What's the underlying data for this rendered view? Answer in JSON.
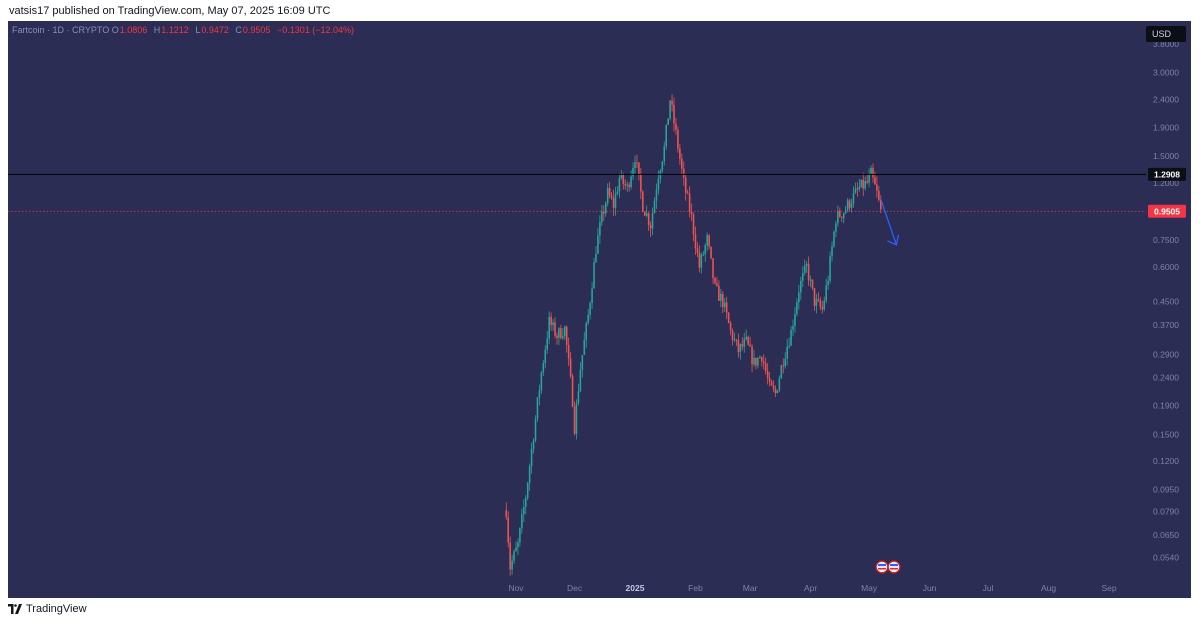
{
  "header": {
    "caption": "vatsis17 published on TradingView.com, May 07, 2025 16:09 UTC"
  },
  "legend": {
    "symbol": "Fartcoin · 1D · CRYPTO",
    "open_key": "O",
    "open": "1.0806",
    "high_key": "H",
    "high": "1.1212",
    "low_key": "L",
    "low": "0.9472",
    "close_key": "C",
    "close": "0.9505",
    "change": "−0.1301 (−12.04%)"
  },
  "currency": "USD",
  "footer": {
    "brand": "TradingView"
  },
  "colors": {
    "background": "#2b2d55",
    "up": "#26a69a",
    "down": "#ef5350",
    "resistance_line": "#000000",
    "price_line": "#f23645",
    "arrow": "#2962ff"
  },
  "chart_data": {
    "type": "candlestick",
    "scale": "log",
    "ylim": [
      0.046,
      4.3
    ],
    "y_ticks": [
      "3.8000",
      "3.0000",
      "2.4000",
      "1.9000",
      "1.5000",
      "1.2000",
      "0.9500",
      "0.7500",
      "0.6000",
      "0.4500",
      "0.3700",
      "0.2900",
      "0.2400",
      "0.1900",
      "0.1500",
      "0.1200",
      "0.0950",
      "0.0790",
      "0.0650",
      "0.0540"
    ],
    "x_ticks": [
      "Nov",
      "Dec",
      "2025",
      "Feb",
      "Mar",
      "Apr",
      "May",
      "Jun",
      "Jul",
      "Aug",
      "Sep"
    ],
    "key_levels": [
      {
        "value": 1.2908,
        "label": "1.2908",
        "style": "solid-black"
      },
      {
        "value": 0.9505,
        "label": "0.9505",
        "style": "dotted-red"
      }
    ],
    "series_path": [
      [
        "2024-10-27",
        0.08
      ],
      [
        "2024-10-29",
        0.05
      ],
      [
        "2024-11-02",
        0.06
      ],
      [
        "2024-11-06",
        0.09
      ],
      [
        "2024-11-10",
        0.15
      ],
      [
        "2024-11-14",
        0.25
      ],
      [
        "2024-11-18",
        0.38
      ],
      [
        "2024-11-22",
        0.34
      ],
      [
        "2024-11-26",
        0.36
      ],
      [
        "2024-11-30",
        0.2
      ],
      [
        "2024-12-01",
        0.16
      ],
      [
        "2024-12-04",
        0.26
      ],
      [
        "2024-12-08",
        0.4
      ],
      [
        "2024-12-12",
        0.7
      ],
      [
        "2024-12-15",
        0.9
      ],
      [
        "2024-12-18",
        1.1
      ],
      [
        "2024-12-21",
        1.0
      ],
      [
        "2024-12-24",
        1.25
      ],
      [
        "2024-12-28",
        1.15
      ],
      [
        "2025-01-01",
        1.5
      ],
      [
        "2025-01-05",
        1.0
      ],
      [
        "2025-01-09",
        0.85
      ],
      [
        "2025-01-13",
        1.3
      ],
      [
        "2025-01-16",
        1.6
      ],
      [
        "2025-01-19",
        2.4
      ],
      [
        "2025-01-22",
        1.8
      ],
      [
        "2025-01-26",
        1.2
      ],
      [
        "2025-01-30",
        0.9
      ],
      [
        "2025-02-03",
        0.6
      ],
      [
        "2025-02-07",
        0.75
      ],
      [
        "2025-02-11",
        0.5
      ],
      [
        "2025-02-15",
        0.45
      ],
      [
        "2025-02-19",
        0.35
      ],
      [
        "2025-02-23",
        0.3
      ],
      [
        "2025-02-27",
        0.32
      ],
      [
        "2025-03-03",
        0.27
      ],
      [
        "2025-03-07",
        0.29
      ],
      [
        "2025-03-11",
        0.22
      ],
      [
        "2025-03-14",
        0.21
      ],
      [
        "2025-03-18",
        0.28
      ],
      [
        "2025-03-22",
        0.35
      ],
      [
        "2025-03-26",
        0.5
      ],
      [
        "2025-03-30",
        0.6
      ],
      [
        "2025-04-03",
        0.45
      ],
      [
        "2025-04-07",
        0.42
      ],
      [
        "2025-04-10",
        0.55
      ],
      [
        "2025-04-14",
        0.9
      ],
      [
        "2025-04-18",
        0.95
      ],
      [
        "2025-04-22",
        1.05
      ],
      [
        "2025-04-26",
        1.15
      ],
      [
        "2025-04-30",
        1.2
      ],
      [
        "2025-05-02",
        1.29
      ],
      [
        "2025-05-05",
        1.1
      ],
      [
        "2025-05-07",
        0.9505
      ]
    ],
    "projection_arrow": {
      "from": [
        "2025-05-07",
        1.05
      ],
      "to": [
        "2025-05-15",
        0.72
      ]
    }
  }
}
